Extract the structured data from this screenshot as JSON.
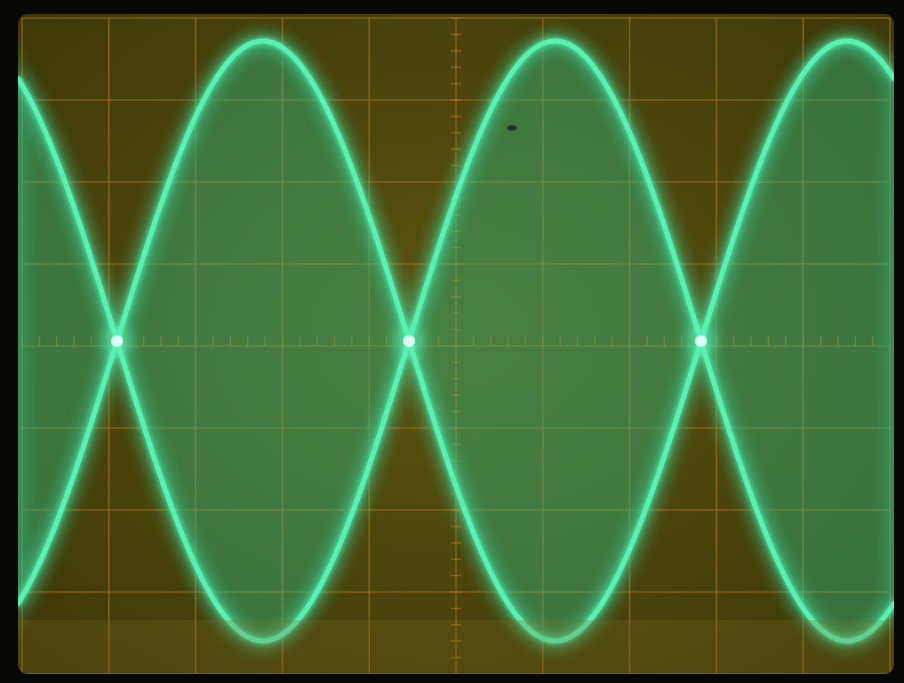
{
  "scene": {
    "subject": "oscilloscope-screen",
    "waveform": "amplitude-modulated-envelope",
    "colors": {
      "screen_background": "#5c5410",
      "screen_background_edge": "#3d3808",
      "graticule": "#b8741a",
      "trace": "#56f2b4",
      "trace_fill": "#2fbf86",
      "node_glow": "#d8fff2",
      "bezel": "#070704"
    },
    "graticule": {
      "major_columns": 10,
      "major_rows": 8,
      "minor_ticks_per_division": 5
    },
    "envelope": {
      "visible_nodes": 3,
      "visible_lobes": 4
    }
  }
}
